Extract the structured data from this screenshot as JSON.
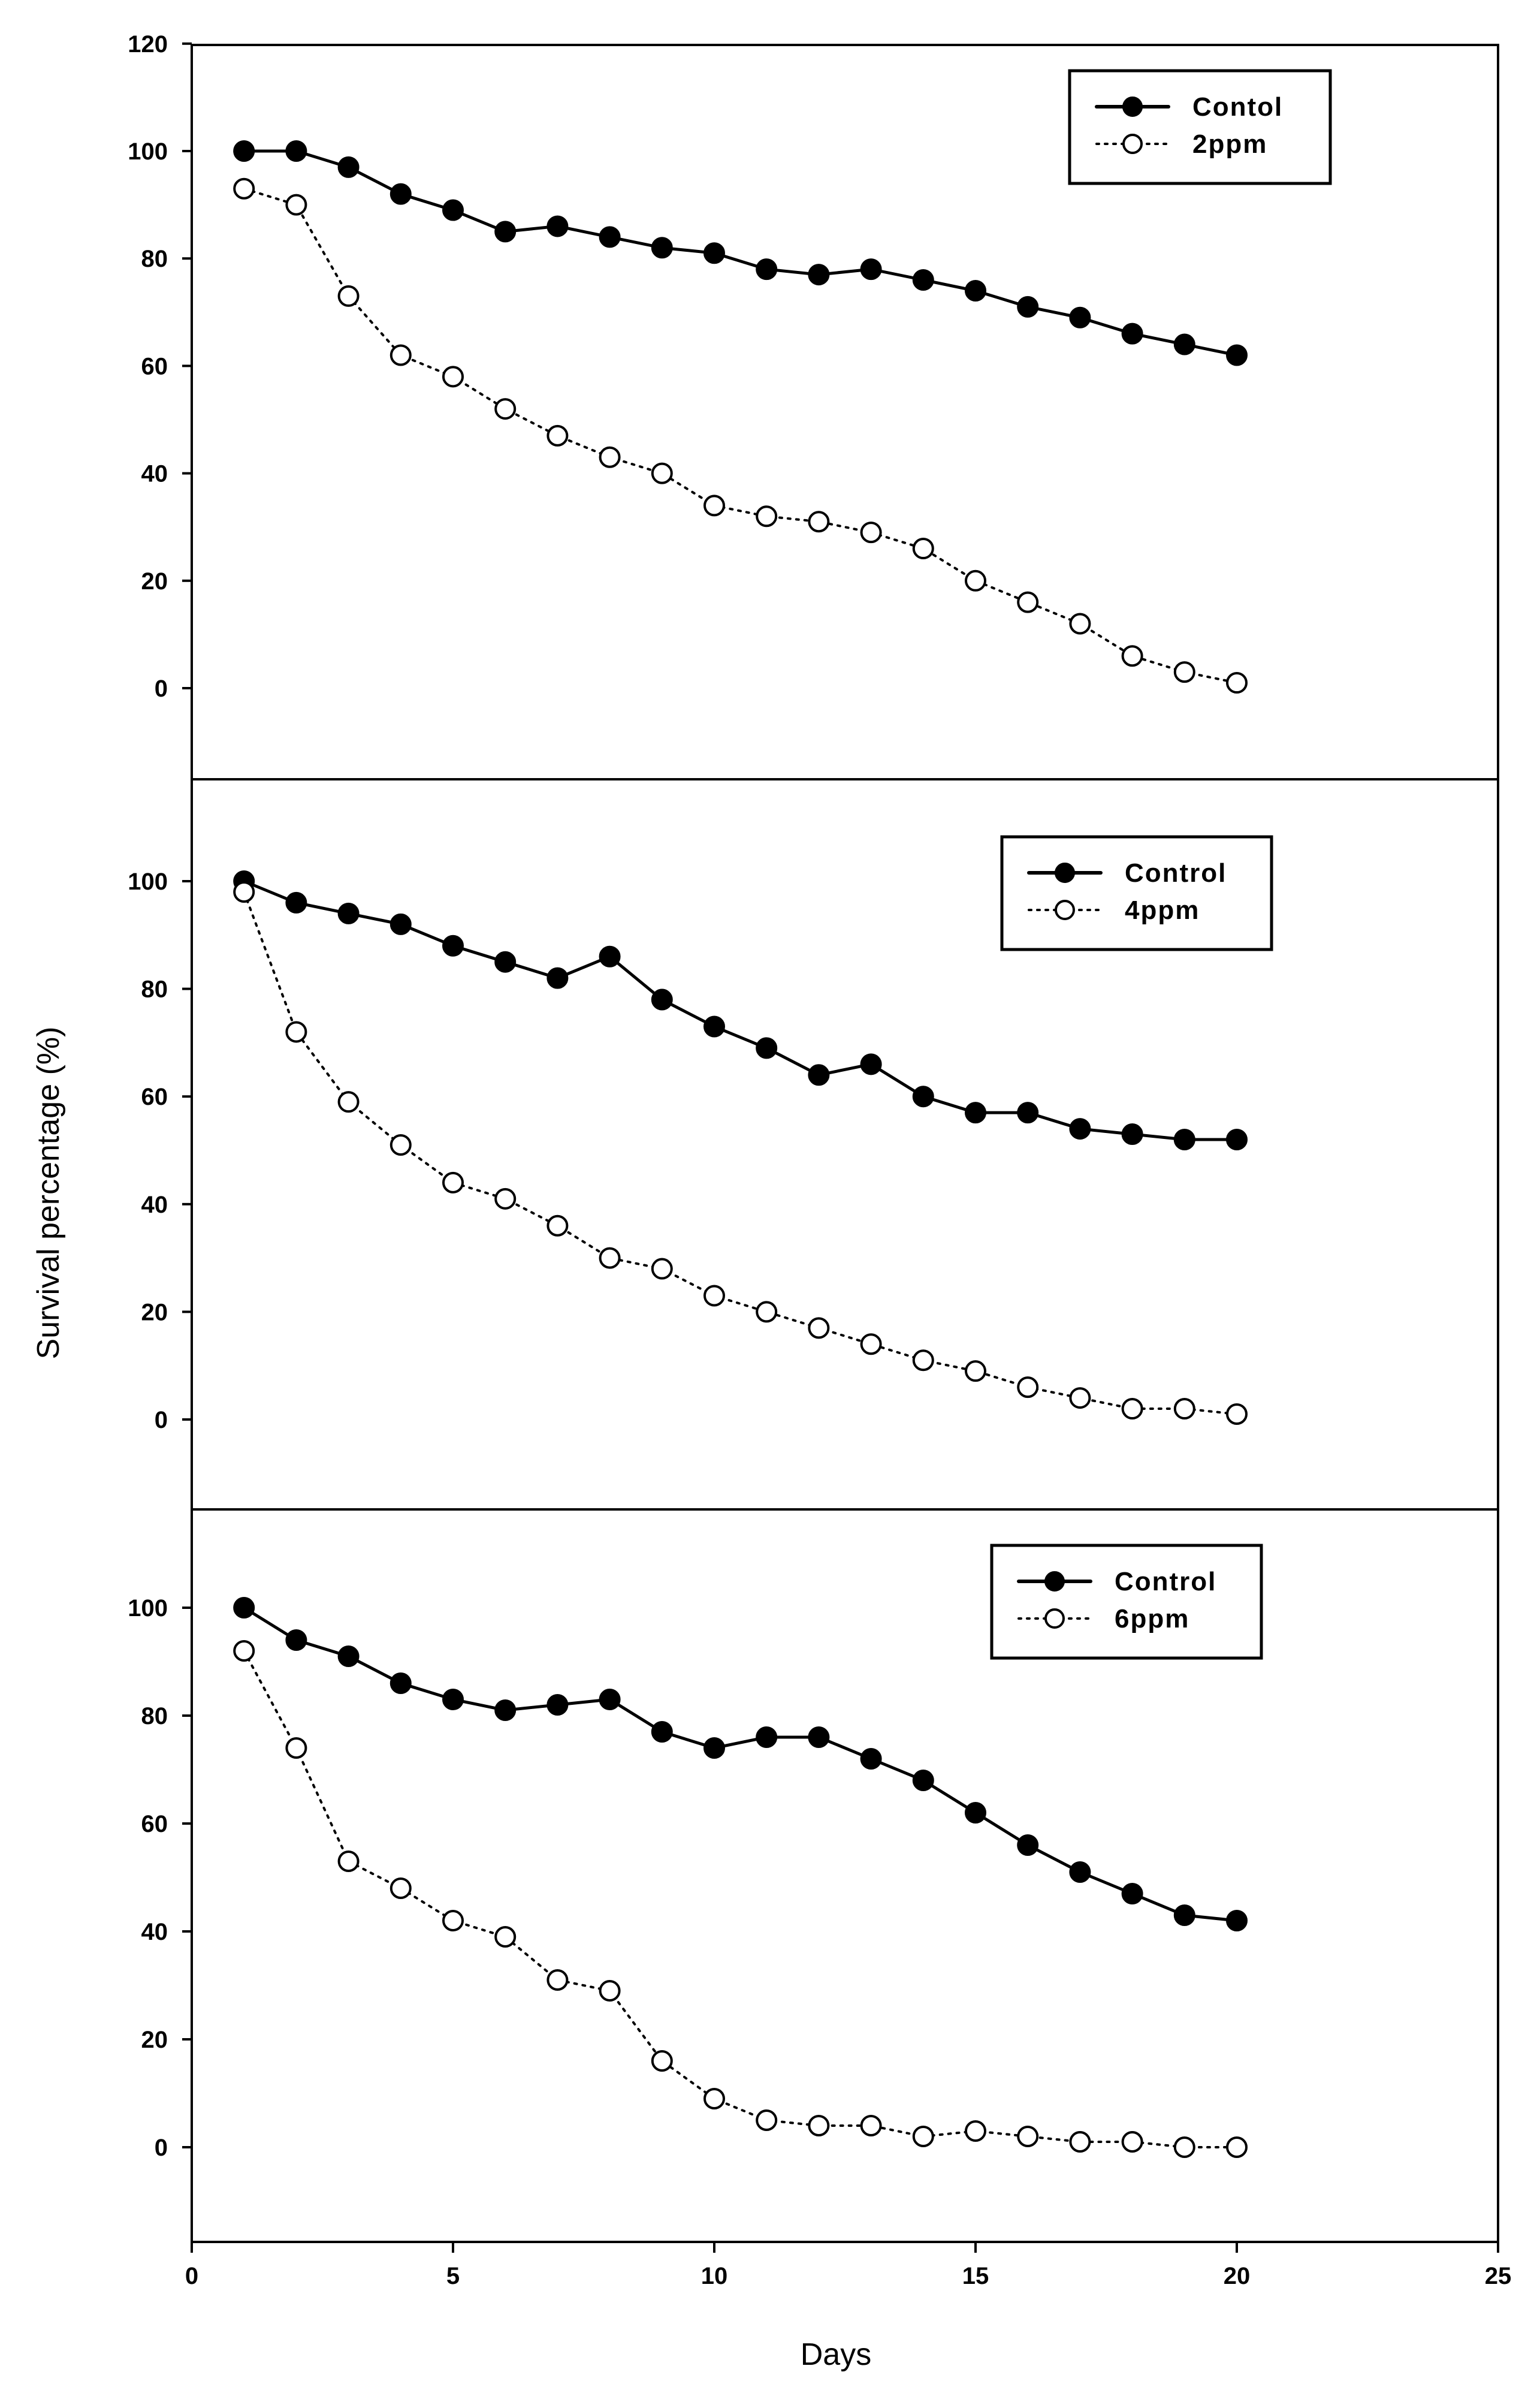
{
  "chart_data": {
    "type": "line",
    "xlabel": "Days",
    "ylabel": "Survival percentage (%)",
    "xlim": [
      0,
      25
    ],
    "x_ticks": [
      0,
      5,
      10,
      15,
      20,
      25
    ],
    "x": [
      1,
      2,
      3,
      4,
      5,
      6,
      7,
      8,
      9,
      10,
      11,
      12,
      13,
      14,
      15,
      16,
      17,
      18,
      19,
      20
    ],
    "panels": [
      {
        "ylim": [
          -15,
          120
        ],
        "y_ticks": [
          0,
          20,
          40,
          60,
          80,
          100,
          120
        ],
        "legend_position": "top-right",
        "series": [
          {
            "name": "Contol",
            "marker": "filled-circle",
            "line": "solid",
            "values": [
              100,
              100,
              97,
              92,
              89,
              85,
              86,
              84,
              82,
              81,
              78,
              77,
              78,
              76,
              74,
              71,
              69,
              66,
              64,
              62
            ]
          },
          {
            "name": "2ppm",
            "marker": "open-circle",
            "line": "dotted",
            "values": [
              93,
              90,
              73,
              62,
              58,
              52,
              47,
              43,
              40,
              34,
              32,
              31,
              29,
              26,
              20,
              16,
              12,
              6,
              3,
              1
            ]
          }
        ]
      },
      {
        "ylim": [
          -15,
          120
        ],
        "y_ticks": [
          0,
          20,
          40,
          60,
          80,
          100
        ],
        "legend_position": "top-right",
        "series": [
          {
            "name": "Control",
            "marker": "filled-circle",
            "line": "solid",
            "values": [
              100,
              96,
              94,
              92,
              88,
              85,
              82,
              86,
              78,
              73,
              69,
              64,
              66,
              60,
              57,
              57,
              54,
              53,
              52,
              52
            ]
          },
          {
            "name": "4ppm",
            "marker": "open-circle",
            "line": "dotted",
            "values": [
              98,
              72,
              59,
              51,
              44,
              41,
              36,
              30,
              28,
              23,
              20,
              17,
              14,
              11,
              9,
              6,
              4,
              2,
              2,
              1
            ]
          }
        ]
      },
      {
        "ylim": [
          -17,
          120
        ],
        "y_ticks": [
          0,
          20,
          40,
          60,
          80,
          100
        ],
        "legend_position": "top-right",
        "series": [
          {
            "name": "Control",
            "marker": "filled-circle",
            "line": "solid",
            "values": [
              100,
              94,
              91,
              86,
              83,
              81,
              82,
              83,
              77,
              74,
              76,
              76,
              72,
              68,
              62,
              56,
              51,
              47,
              43,
              42
            ]
          },
          {
            "name": "6ppm",
            "marker": "open-circle",
            "line": "dotted",
            "values": [
              92,
              74,
              53,
              48,
              42,
              39,
              31,
              29,
              16,
              9,
              5,
              4,
              4,
              2,
              3,
              2,
              1,
              1,
              0,
              0
            ]
          }
        ]
      }
    ]
  }
}
